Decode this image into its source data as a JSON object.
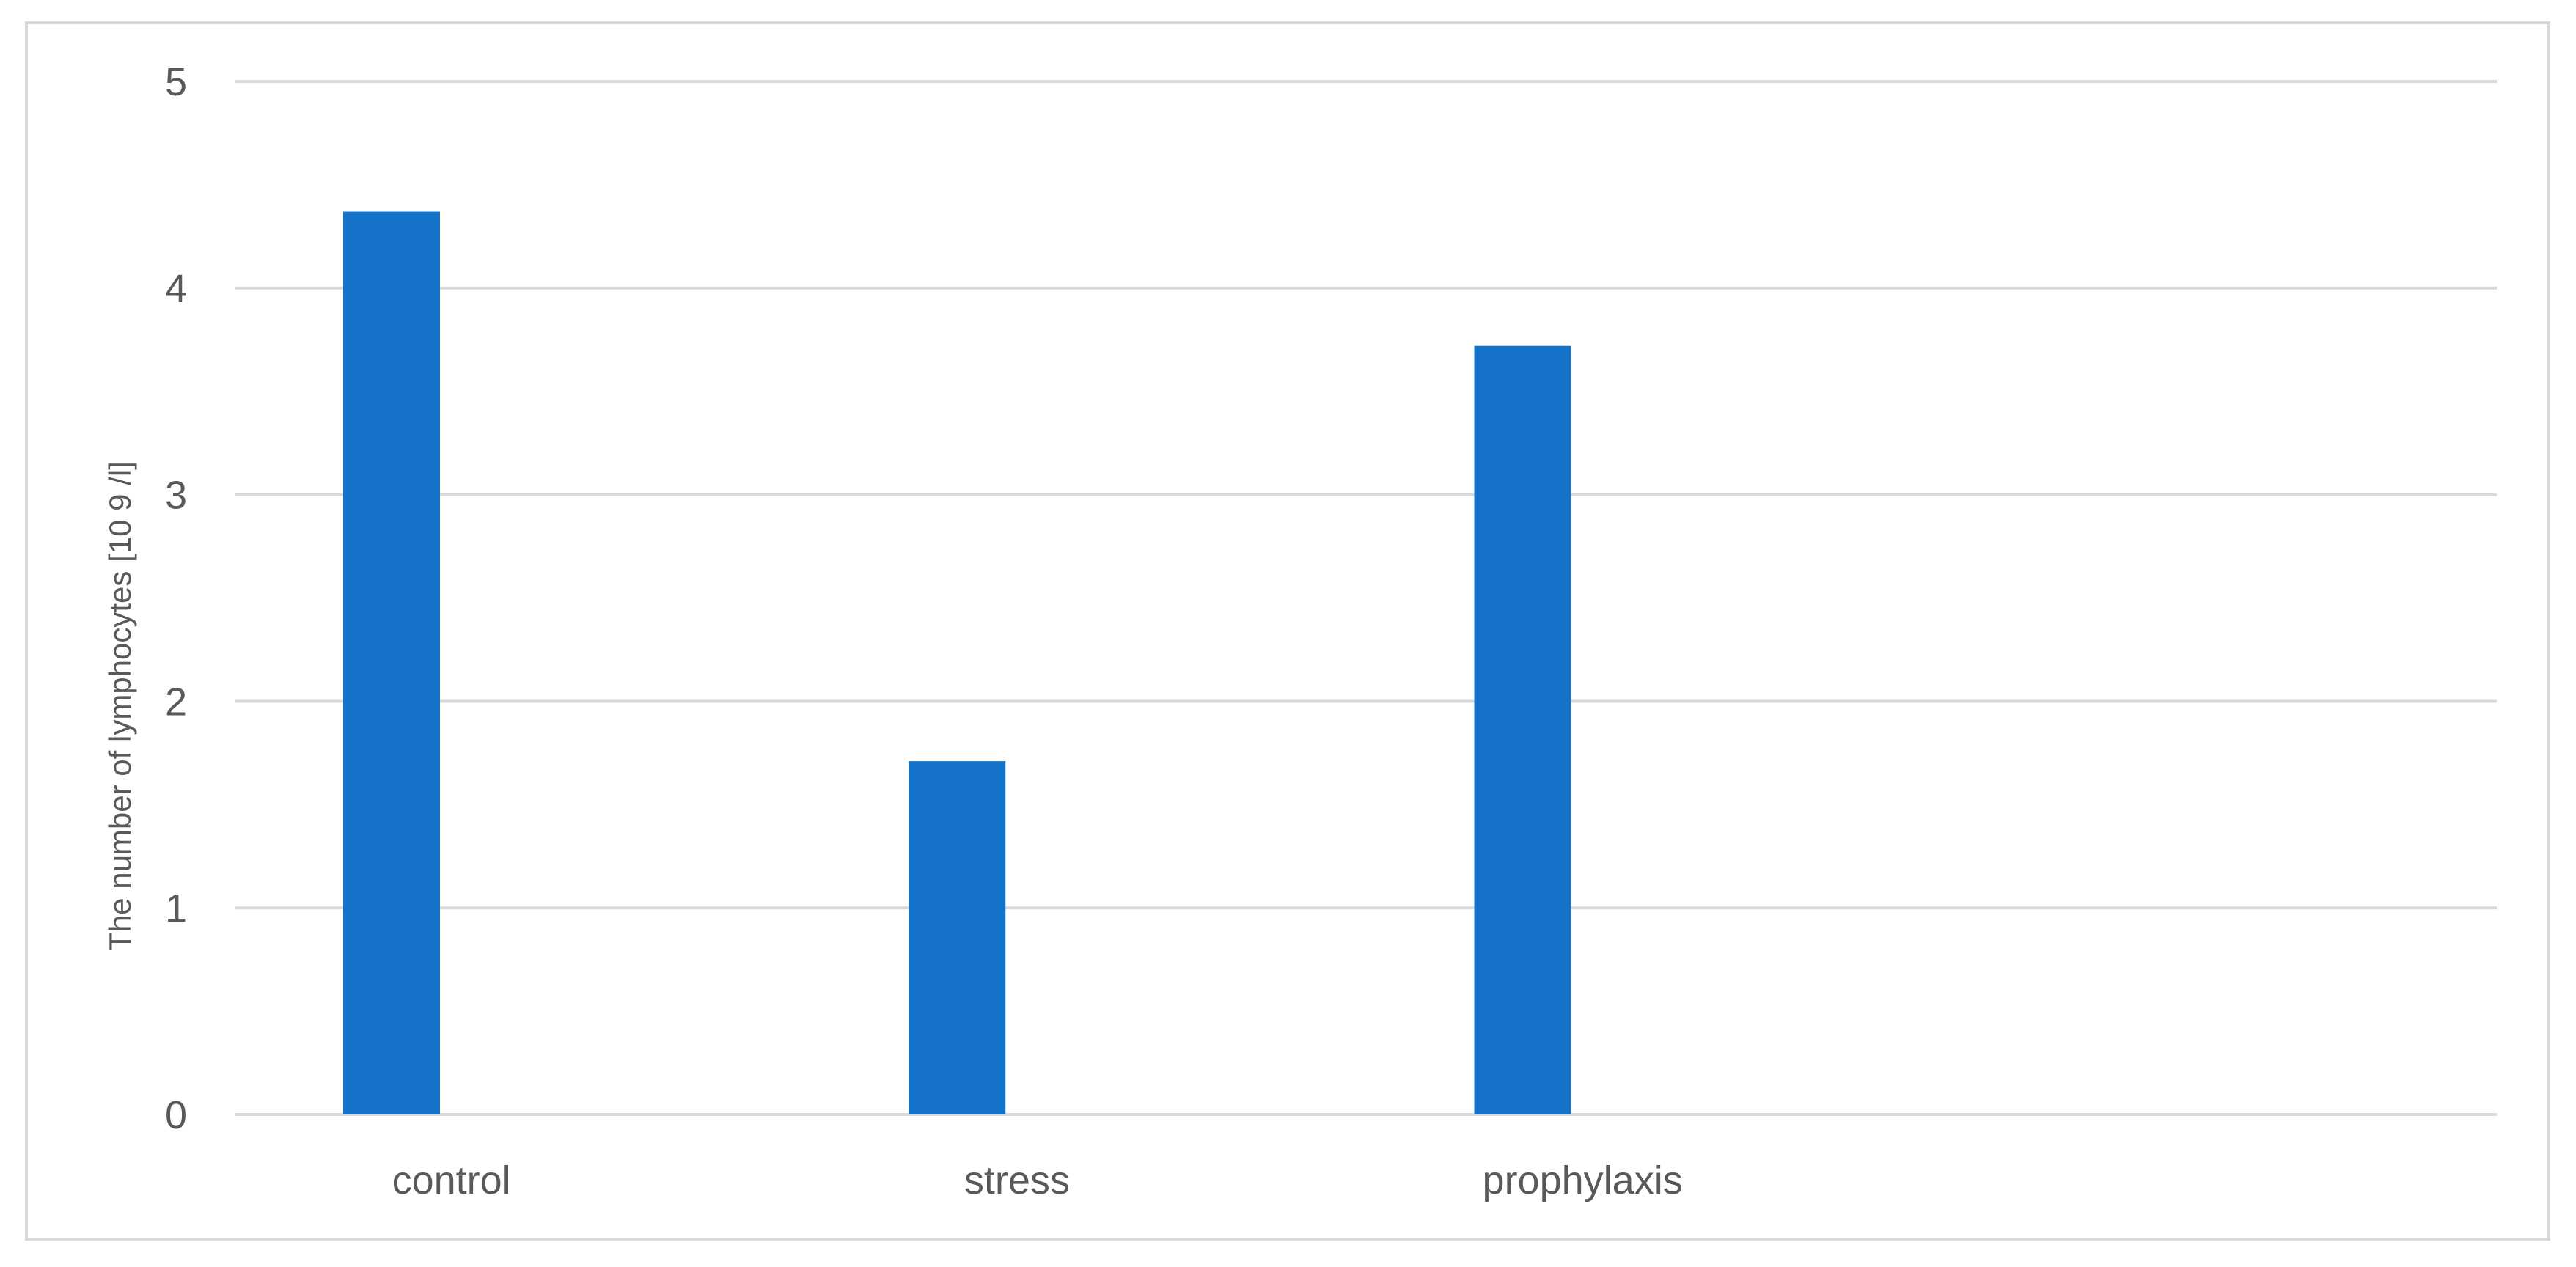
{
  "chart_data": {
    "type": "bar",
    "categories": [
      "control",
      "stress",
      "prophylaxis"
    ],
    "series": [
      {
        "values": [
          4.37,
          1.71,
          3.72
        ],
        "color": "#1572c9"
      }
    ],
    "title": "",
    "xlabel": "",
    "ylabel": "The number of lymphocytes [10 9 /l]",
    "ylim": [
      0,
      5
    ],
    "yticks": [
      "0",
      "1",
      "2",
      "3",
      "4",
      "5"
    ],
    "grid": true,
    "legend": "none",
    "colors": {
      "bar": "#1572c9",
      "grid": "#d9d9d9",
      "text": "#595959",
      "frame": "#d9d9d9"
    }
  }
}
